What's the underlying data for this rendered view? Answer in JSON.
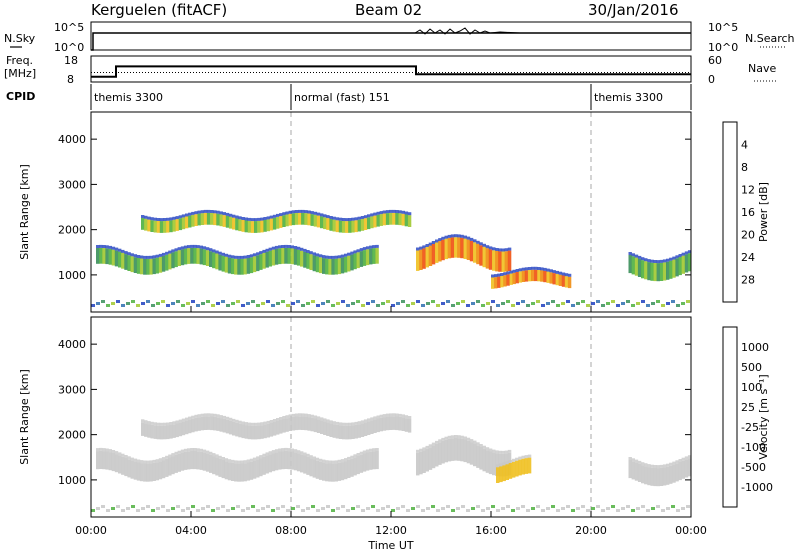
{
  "header": {
    "station": "Kerguelen (fitACF)",
    "beam": "Beam 02",
    "date": "30/Jan/2016"
  },
  "noise_panel": {
    "left_label": "N.Sky",
    "right_label": "N.Search",
    "left_ticks": [
      "10^5",
      "10^0"
    ],
    "right_ticks": [
      "10^5",
      "10^0"
    ]
  },
  "freq_panel": {
    "left_label_1": "Freq.",
    "left_label_2": "[MHz]",
    "right_label": "Nave",
    "left_ticks": [
      "18",
      "8"
    ],
    "right_ticks": [
      "60",
      "0"
    ],
    "freq_steps": [
      {
        "t_start": 0.0,
        "t_end": 1.0,
        "freq": 10.0
      },
      {
        "t_start": 1.0,
        "t_end": 13.0,
        "freq": 14.0
      },
      {
        "t_start": 13.0,
        "t_end": 24.0,
        "freq": 11.0
      }
    ],
    "nave_level": 22
  },
  "cpid_panel": {
    "label": "CPID",
    "segments": [
      {
        "t_start": 0.0,
        "label": "themis 3300"
      },
      {
        "t_start": 8.0,
        "label": "normal (fast) 151"
      },
      {
        "t_start": 20.0,
        "label": "themis 3300"
      }
    ]
  },
  "chart_data": [
    {
      "type": "heatmap",
      "name": "power",
      "ylabel": "Slant Range [km]",
      "xlabel": "",
      "xlim": [
        0,
        24
      ],
      "ylim": [
        180,
        4600
      ],
      "yticks": [
        1000,
        2000,
        3000,
        4000
      ],
      "colorbar": {
        "label": "Power [dB]",
        "ticks": [
          "4",
          "8",
          "12",
          "16",
          "20",
          "24",
          "28"
        ],
        "colors": [
          "#1010ff",
          "#2040c0",
          "#2f6fb0",
          "#3a8f5a",
          "#4fb040",
          "#a0c830",
          "#f0c020",
          "#f08c10",
          "#f05010",
          "#e01010"
        ]
      },
      "features": [
        {
          "t_start": 2.0,
          "t_end": 12.8,
          "range_center": 2150,
          "range_width": 260,
          "power": 20
        },
        {
          "t_start": 0.2,
          "t_end": 11.5,
          "range_center": 1300,
          "range_width": 350,
          "power": 16
        },
        {
          "t_start": 13.0,
          "t_end": 16.8,
          "range_center": 1450,
          "range_width": 450,
          "power": 24
        },
        {
          "t_start": 16.0,
          "t_end": 19.2,
          "range_center": 900,
          "range_width": 250,
          "power": 24
        },
        {
          "t_start": 21.5,
          "t_end": 24.0,
          "range_center": 1200,
          "range_width": 400,
          "power": 16
        }
      ]
    },
    {
      "type": "heatmap",
      "name": "velocity",
      "xlabel": "Time UT",
      "ylabel": "Slant Range [km]",
      "xlim": [
        0,
        24
      ],
      "ylim": [
        180,
        4600
      ],
      "xticks": [
        "00:00",
        "04:00",
        "08:00",
        "12:00",
        "16:00",
        "20:00",
        "00:00"
      ],
      "yticks": [
        1000,
        2000,
        3000,
        4000
      ],
      "colorbar": {
        "label": "Velocity [m s⁻¹]",
        "ticks": [
          "1000",
          "500",
          "100",
          "25",
          "-25",
          "-100",
          "-500",
          "-1000"
        ],
        "colors": [
          "#2040c0",
          "#3a8f5a",
          "#4fb040",
          "#c8c8c8",
          "#c8c8c8",
          "#f0c020",
          "#f08c10",
          "#e01010"
        ]
      },
      "features": [
        {
          "t_start": 2.0,
          "t_end": 12.8,
          "range_center": 2150,
          "range_width": 300,
          "velocity": 0
        },
        {
          "t_start": 0.2,
          "t_end": 11.5,
          "range_center": 1300,
          "range_width": 400,
          "velocity": 0
        },
        {
          "t_start": 13.0,
          "t_end": 16.8,
          "range_center": 1500,
          "range_width": 500,
          "velocity": 0
        },
        {
          "t_start": 16.2,
          "t_end": 17.6,
          "range_center": 1200,
          "range_width": 350,
          "velocity": -100
        },
        {
          "t_start": 21.5,
          "t_end": 24.0,
          "range_center": 1200,
          "range_width": 400,
          "velocity": 25
        }
      ]
    }
  ]
}
